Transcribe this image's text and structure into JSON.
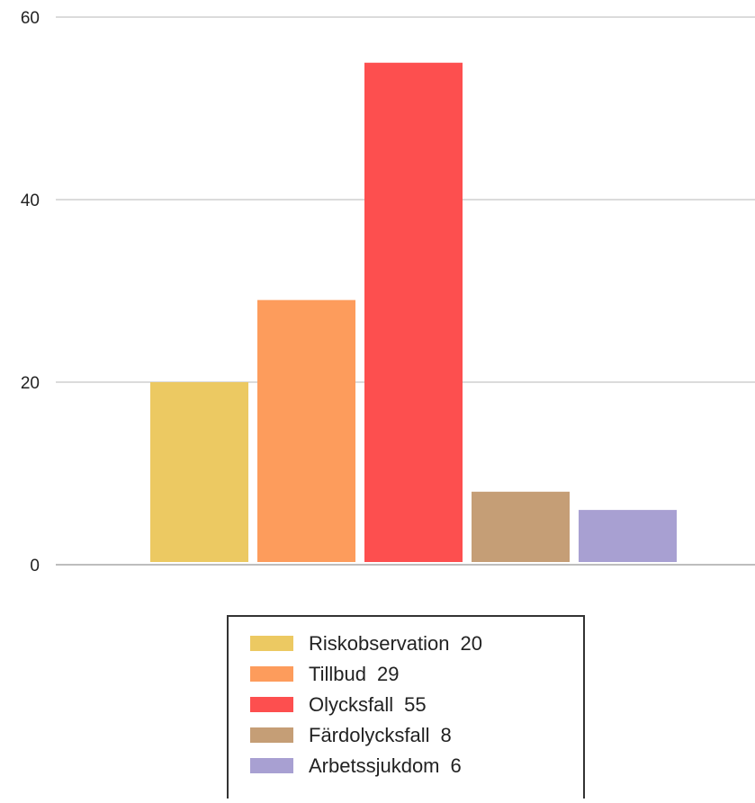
{
  "chart_data": {
    "type": "bar",
    "title": "",
    "xlabel": "",
    "ylabel": "",
    "categories": [
      "Riskobservation",
      "Tillbud",
      "Olycksfall",
      "Färdolycksfall",
      "Arbetssjukdom"
    ],
    "values": [
      20,
      29,
      55,
      8,
      6
    ],
    "colors": [
      "#ecc962",
      "#fd9c5c",
      "#fd4f4f",
      "#c59e76",
      "#a8a0d2"
    ],
    "ylim": [
      0,
      60
    ],
    "yticks": [
      0,
      20,
      40,
      60
    ],
    "ytick_labels": [
      "0",
      "20",
      "40",
      "60"
    ],
    "grid": true,
    "legend": {
      "placement": "bottom-center",
      "items": [
        {
          "label": "Riskobservation",
          "value": "20"
        },
        {
          "label": "Tillbud",
          "value": "29"
        },
        {
          "label": "Olycksfall",
          "value": "55"
        },
        {
          "label": "Färdolycksfall",
          "value": "8"
        },
        {
          "label": "Arbetssjukdom",
          "value": "6"
        }
      ]
    }
  }
}
